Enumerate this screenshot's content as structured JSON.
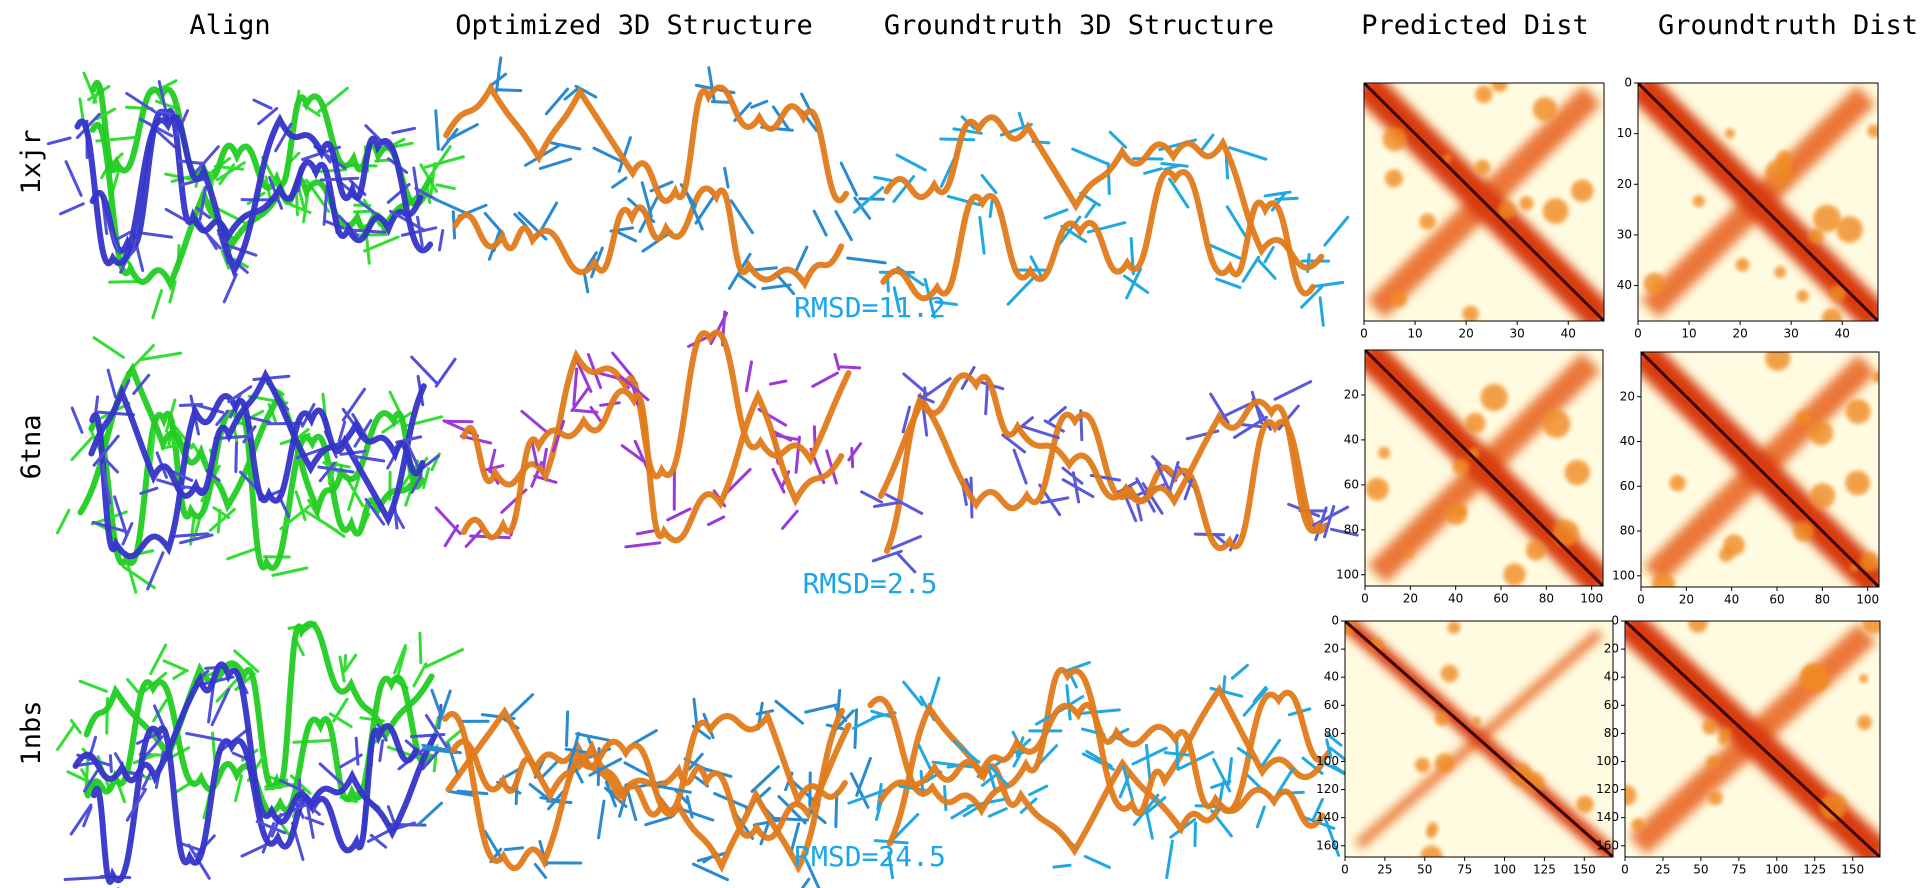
{
  "columns": [
    "Align",
    "Optimized 3D Structure",
    "Groundtruth 3D Structure",
    "Predicted Dist",
    "Groundtruth Dist"
  ],
  "rows": [
    {
      "id": "1xjr",
      "rmsd": "RMSD=11.2",
      "pred": {
        "xlim": [
          0,
          47
        ],
        "ylim": [
          0,
          47
        ],
        "xticks": [
          0,
          10,
          20,
          30,
          40
        ],
        "yticks": []
      },
      "gt": {
        "xlim": [
          0,
          47
        ],
        "ylim": [
          0,
          47
        ],
        "xticks": [
          0,
          10,
          20,
          30,
          40
        ],
        "yticks": [
          0,
          10,
          20,
          30,
          40
        ]
      }
    },
    {
      "id": "6tna",
      "rmsd": "RMSD=2.5",
      "pred": {
        "xlim": [
          0,
          105
        ],
        "ylim": [
          0,
          105
        ],
        "xticks": [
          0,
          20,
          40,
          60,
          80,
          100
        ],
        "yticks": [
          20,
          40,
          60,
          80,
          100
        ]
      },
      "gt": {
        "xlim": [
          0,
          105
        ],
        "ylim": [
          0,
          105
        ],
        "xticks": [
          0,
          20,
          40,
          60,
          80,
          100
        ],
        "yticks": [
          20,
          40,
          60,
          80,
          100
        ]
      }
    },
    {
      "id": "1nbs",
      "rmsd": "RMSD=24.5",
      "pred": {
        "xlim": [
          0,
          168
        ],
        "ylim": [
          0,
          168
        ],
        "xticks": [
          0,
          25,
          50,
          75,
          100,
          125,
          150
        ],
        "yticks": [
          0,
          20,
          40,
          60,
          80,
          100,
          120,
          140,
          160
        ]
      },
      "gt": {
        "xlim": [
          0,
          168
        ],
        "ylim": [
          0,
          168
        ],
        "xticks": [
          0,
          25,
          50,
          75,
          100,
          125,
          150
        ],
        "yticks": [
          0,
          20,
          40,
          60,
          80,
          100,
          120,
          140,
          160
        ]
      }
    }
  ]
}
